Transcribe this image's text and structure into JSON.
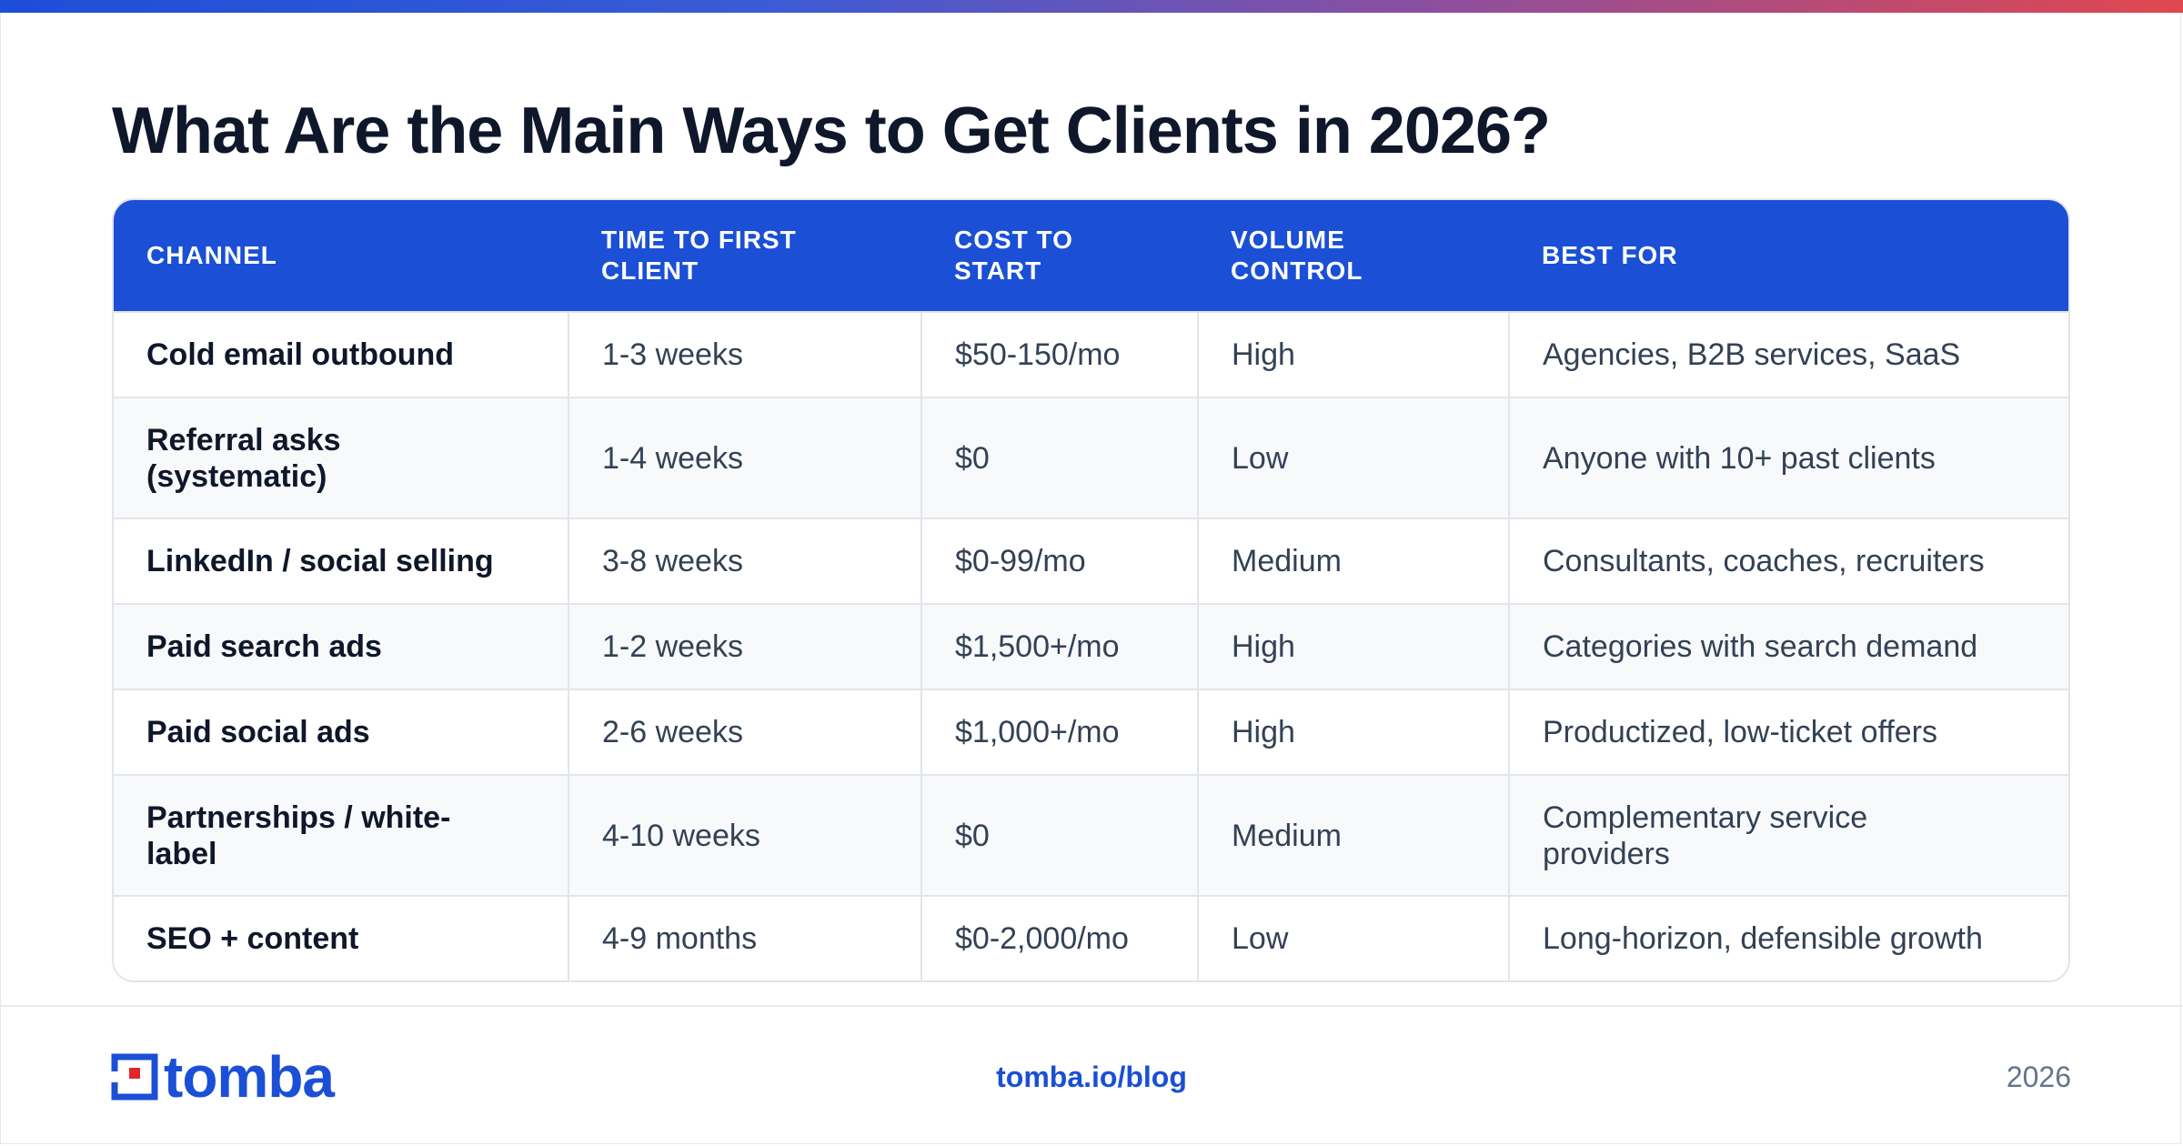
{
  "title": "What Are the Main Ways to Get Clients in 2026?",
  "colors": {
    "accent": "#1a4fd6",
    "gradient_start": "#1d4ed8",
    "gradient_end": "#e0474f",
    "logo_red": "#e0252d"
  },
  "table": {
    "headers": [
      "CHANNEL",
      "TIME TO FIRST CLIENT",
      "COST TO START",
      "VOLUME CONTROL",
      "BEST FOR"
    ],
    "rows": [
      {
        "channel": "Cold email outbound",
        "time": "1-3 weeks",
        "cost": "$50-150/mo",
        "volume": "High",
        "best_for": "Agencies, B2B services, SaaS"
      },
      {
        "channel": "Referral asks (systematic)",
        "time": "1-4 weeks",
        "cost": "$0",
        "volume": "Low",
        "best_for": "Anyone with 10+ past clients"
      },
      {
        "channel": "LinkedIn / social selling",
        "time": "3-8 weeks",
        "cost": "$0-99/mo",
        "volume": "Medium",
        "best_for": "Consultants, coaches, recruiters"
      },
      {
        "channel": "Paid search ads",
        "time": "1-2 weeks",
        "cost": "$1,500+/mo",
        "volume": "High",
        "best_for": "Categories with search demand"
      },
      {
        "channel": "Paid social ads",
        "time": "2-6 weeks",
        "cost": "$1,000+/mo",
        "volume": "High",
        "best_for": "Productized, low-ticket offers"
      },
      {
        "channel": "Partnerships / white-label",
        "time": "4-10 weeks",
        "cost": "$0",
        "volume": "Medium",
        "best_for": "Complementary service providers"
      },
      {
        "channel": "SEO + content",
        "time": "4-9 months",
        "cost": "$0-2,000/mo",
        "volume": "Low",
        "best_for": "Long-horizon, defensible growth"
      }
    ]
  },
  "footer": {
    "logo_text": "tomba",
    "logo_icon": "tomba-logo-icon",
    "link": "tomba.io/blog",
    "year": "2026"
  }
}
